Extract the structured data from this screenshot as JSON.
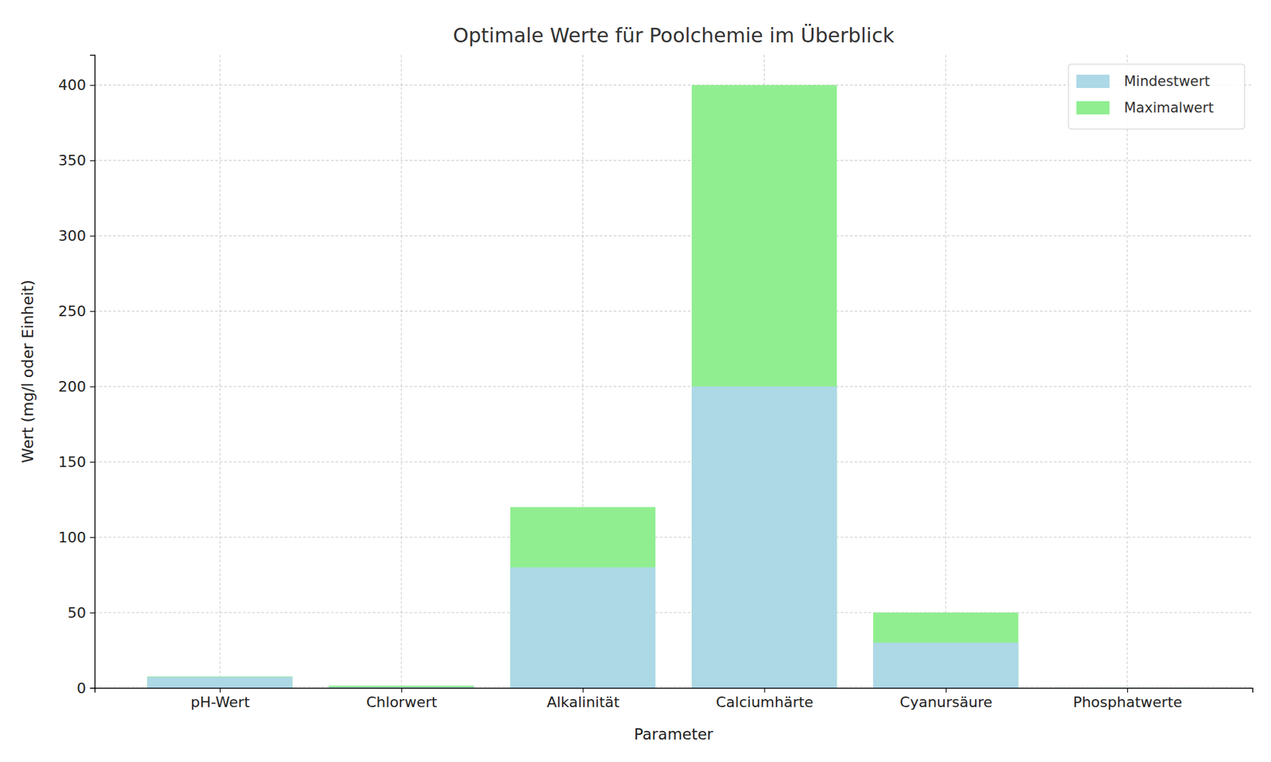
{
  "chart_data": {
    "type": "bar",
    "title": "Optimale Werte für Poolchemie im Überblick",
    "x_label": "Parameter",
    "y_label": "Wert (mg/l oder Einheit)",
    "categories": [
      "pH-Wert",
      "Chlorwert",
      "Alkalinität",
      "Calciumhärte",
      "Cyanursäure",
      "Phosphatwerte"
    ],
    "series": [
      {
        "name": "Mindestwert",
        "color": "#add8e6",
        "values": [
          7.2,
          0.5,
          80,
          200,
          30,
          0
        ]
      },
      {
        "name": "Maximalwert",
        "color": "#90ee90",
        "values": [
          7.6,
          1.5,
          120,
          400,
          50,
          0.1
        ]
      }
    ],
    "stacked": false,
    "ylim": [
      0,
      420
    ],
    "yticks": [
      0,
      50,
      100,
      150,
      200,
      250,
      300,
      350,
      400
    ],
    "grid": true,
    "legend": "upper right"
  }
}
